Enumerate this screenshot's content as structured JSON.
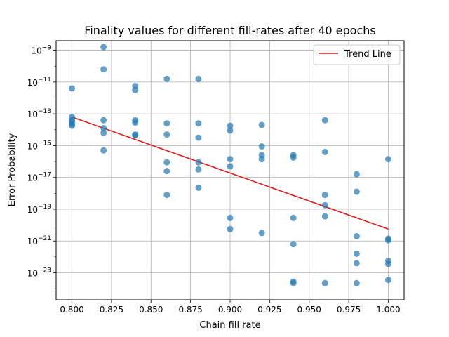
{
  "chart_data": {
    "type": "scatter",
    "title": "Finality values for different fill-rates after 40 epochs",
    "xlabel": "Chain fill rate",
    "ylabel": "Error Probability",
    "xlim": [
      0.79,
      1.01
    ],
    "ylim_log10": [
      -24.7,
      -8.4
    ],
    "y_scale": "log",
    "grid": true,
    "legend": {
      "position": "top-right",
      "entries": [
        "Trend Line"
      ]
    },
    "x_ticks": [
      "0.800",
      "0.825",
      "0.850",
      "0.875",
      "0.900",
      "0.925",
      "0.950",
      "0.975",
      "1.000"
    ],
    "x_tick_values": [
      0.8,
      0.825,
      0.85,
      0.875,
      0.9,
      0.925,
      0.95,
      0.975,
      1.0
    ],
    "y_ticks": [
      {
        "base": "10",
        "exp": "−9",
        "value": -9
      },
      {
        "base": "10",
        "exp": "−11",
        "value": -11
      },
      {
        "base": "10",
        "exp": "−13",
        "value": -13
      },
      {
        "base": "10",
        "exp": "−15",
        "value": -15
      },
      {
        "base": "10",
        "exp": "−17",
        "value": -17
      },
      {
        "base": "10",
        "exp": "−19",
        "value": -19
      },
      {
        "base": "10",
        "exp": "−21",
        "value": -21
      },
      {
        "base": "10",
        "exp": "−23",
        "value": -23
      }
    ],
    "scatter_color": "#1f77b4",
    "trend_color": "#e41a1c",
    "points_log10": [
      [
        0.8,
        -11.4
      ],
      [
        0.8,
        -13.2
      ],
      [
        0.8,
        -13.4
      ],
      [
        0.8,
        -13.5
      ],
      [
        0.8,
        -13.65
      ],
      [
        0.8,
        -13.75
      ],
      [
        0.82,
        -8.8
      ],
      [
        0.82,
        -10.2
      ],
      [
        0.82,
        -13.4
      ],
      [
        0.82,
        -13.9
      ],
      [
        0.82,
        -14.2
      ],
      [
        0.82,
        -15.3
      ],
      [
        0.84,
        -11.25
      ],
      [
        0.84,
        -11.5
      ],
      [
        0.84,
        -13.4
      ],
      [
        0.84,
        -13.55
      ],
      [
        0.84,
        -14.3
      ],
      [
        0.84,
        -14.35
      ],
      [
        0.86,
        -10.8
      ],
      [
        0.86,
        -13.6
      ],
      [
        0.86,
        -14.3
      ],
      [
        0.86,
        -16.05
      ],
      [
        0.86,
        -16.6
      ],
      [
        0.86,
        -18.1
      ],
      [
        0.88,
        -10.8
      ],
      [
        0.88,
        -13.6
      ],
      [
        0.88,
        -14.5
      ],
      [
        0.88,
        -16.05
      ],
      [
        0.88,
        -16.5
      ],
      [
        0.88,
        -17.65
      ],
      [
        0.9,
        -13.75
      ],
      [
        0.9,
        -14.05
      ],
      [
        0.9,
        -15.85
      ],
      [
        0.9,
        -16.3
      ],
      [
        0.9,
        -19.55
      ],
      [
        0.9,
        -20.25
      ],
      [
        0.92,
        -13.7
      ],
      [
        0.92,
        -15.05
      ],
      [
        0.92,
        -15.6
      ],
      [
        0.92,
        -15.85
      ],
      [
        0.92,
        -20.5
      ],
      [
        0.94,
        -15.6
      ],
      [
        0.94,
        -15.75
      ],
      [
        0.94,
        -19.55
      ],
      [
        0.94,
        -21.2
      ],
      [
        0.94,
        -23.55
      ],
      [
        0.94,
        -23.65
      ],
      [
        0.96,
        -13.4
      ],
      [
        0.96,
        -15.4
      ],
      [
        0.96,
        -18.1
      ],
      [
        0.96,
        -18.75
      ],
      [
        0.96,
        -19.45
      ],
      [
        0.96,
        -23.65
      ],
      [
        0.98,
        -16.8
      ],
      [
        0.98,
        -17.9
      ],
      [
        0.98,
        -20.7
      ],
      [
        0.98,
        -21.8
      ],
      [
        0.98,
        -22.4
      ],
      [
        0.98,
        -23.65
      ],
      [
        1.0,
        -15.85
      ],
      [
        1.0,
        -20.85
      ],
      [
        1.0,
        -20.95
      ],
      [
        1.0,
        -22.25
      ],
      [
        1.0,
        -22.45
      ],
      [
        1.0,
        -23.45
      ]
    ],
    "trend_line_log10": {
      "x": [
        0.8,
        1.0
      ],
      "y": [
        -13.2,
        -20.25
      ]
    }
  }
}
